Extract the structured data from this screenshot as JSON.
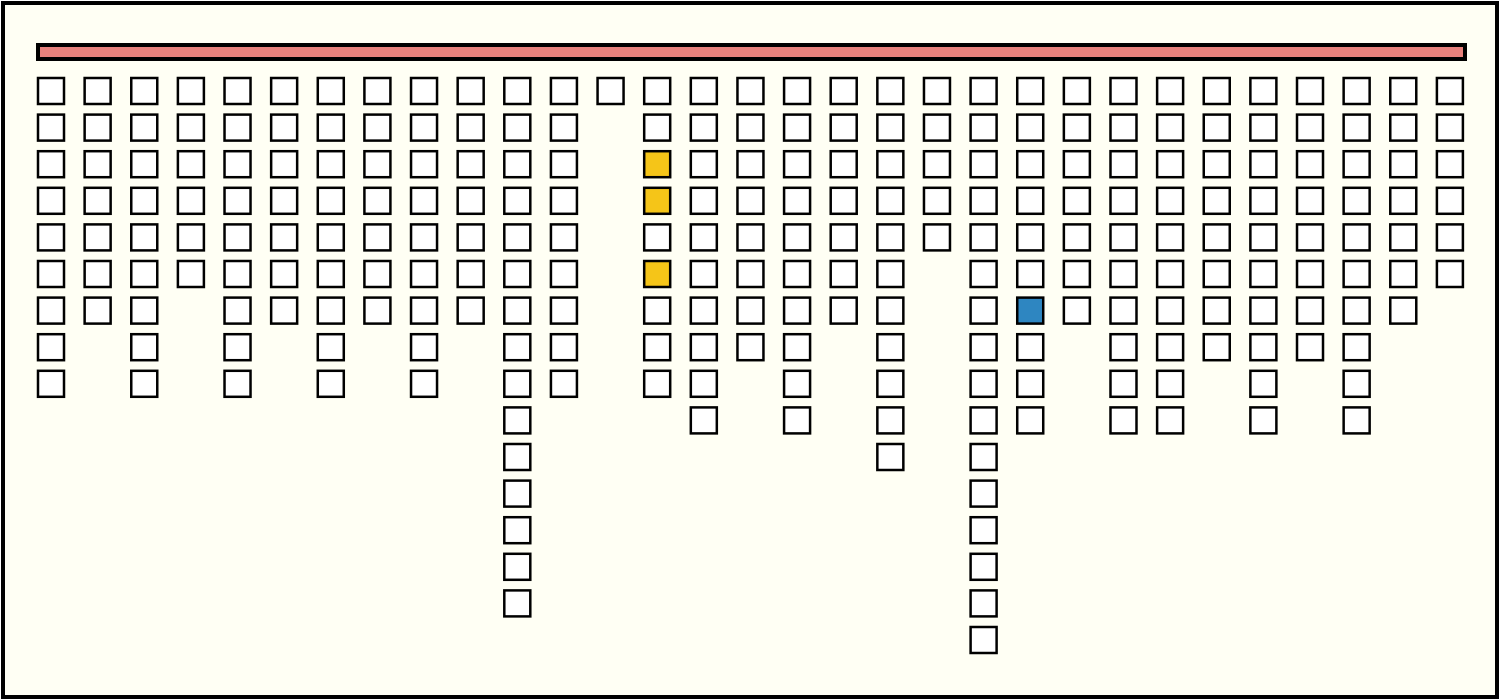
{
  "columns": [
    9,
    7,
    9,
    6,
    9,
    7,
    9,
    7,
    9,
    7,
    15,
    9,
    1,
    9,
    10,
    8,
    10,
    7,
    11,
    5,
    16,
    10,
    7,
    10,
    10,
    8,
    10,
    8,
    10,
    7,
    6
  ],
  "highlights": [
    {
      "column": 13,
      "row": 2,
      "color": "#f5c518"
    },
    {
      "column": 13,
      "row": 3,
      "color": "#f5c518"
    },
    {
      "column": 13,
      "row": 5,
      "color": "#f5c518"
    },
    {
      "column": 21,
      "row": 6,
      "color": "#2e86c1"
    }
  ],
  "cell_color": "#ffffff",
  "bar_color": "#e8817c"
}
